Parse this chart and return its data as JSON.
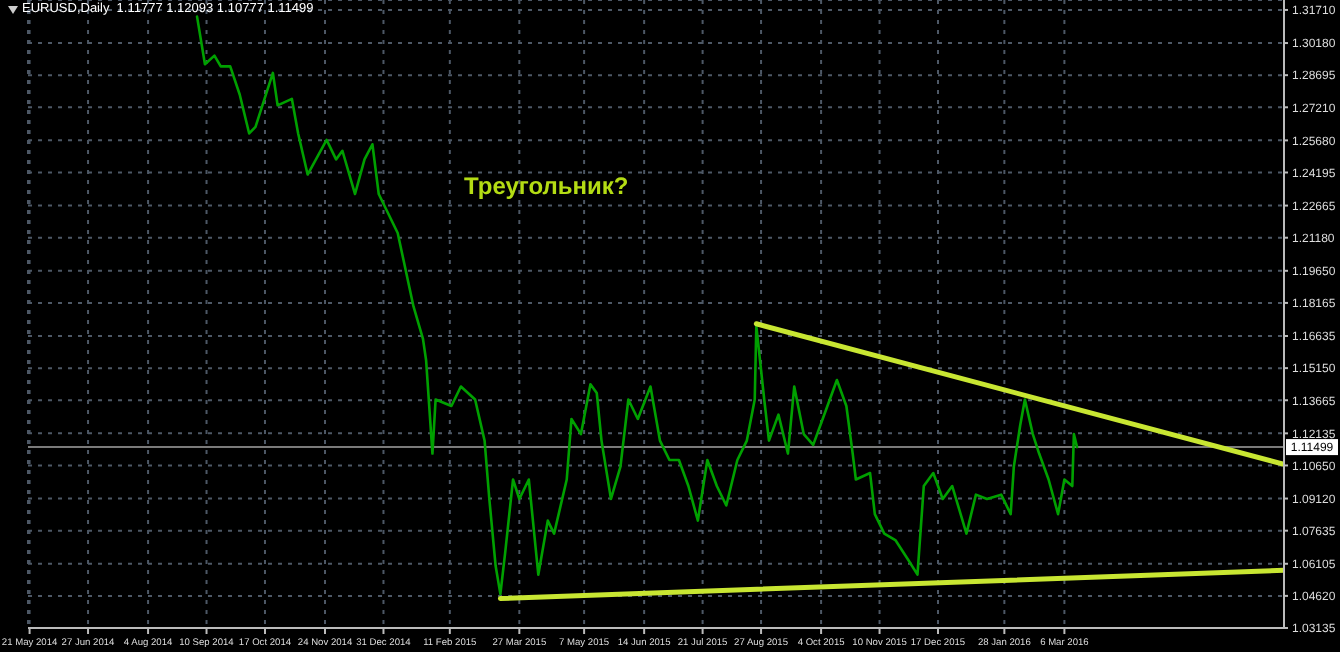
{
  "chart_data": {
    "type": "line",
    "title": "EURUSD,Daily  1.11777 1.12093 1.10777 1.11499",
    "annotations": [
      "Треугольник?"
    ],
    "x": [
      "2014-09-04",
      "2014-09-09",
      "2014-09-15",
      "2014-09-19",
      "2014-09-25",
      "2014-10-01",
      "2014-10-07",
      "2014-10-11",
      "2014-10-22",
      "2014-10-25",
      "2014-11-03",
      "2014-11-07",
      "2014-11-13",
      "2014-11-25",
      "2014-12-01",
      "2014-12-05",
      "2014-12-13",
      "2014-12-19",
      "2014-12-24",
      "2014-12-28",
      "2015-01-03",
      "2015-01-09",
      "2015-01-19",
      "2015-01-25",
      "2015-01-27",
      "2015-01-31",
      "2015-02-02",
      "2015-02-12",
      "2015-02-18",
      "2015-02-27",
      "2015-03-05",
      "2015-03-08",
      "2015-03-12",
      "2015-03-15",
      "2015-03-18",
      "2015-03-23",
      "2015-03-27",
      "2015-04-02",
      "2015-04-08",
      "2015-04-14",
      "2015-04-18",
      "2015-04-26",
      "2015-04-29",
      "2015-05-05",
      "2015-05-11",
      "2015-05-15",
      "2015-05-18",
      "2015-05-24",
      "2015-05-30",
      "2015-06-04",
      "2015-06-10",
      "2015-06-18",
      "2015-06-24",
      "2015-06-30",
      "2015-07-06",
      "2015-07-12",
      "2015-07-18",
      "2015-07-24",
      "2015-07-30",
      "2015-08-05",
      "2015-08-12",
      "2015-08-18",
      "2015-08-23",
      "2015-08-24",
      "2015-08-29",
      "2015-09-01",
      "2015-09-07",
      "2015-09-13",
      "2015-09-17",
      "2015-09-23",
      "2015-09-29",
      "2015-10-05",
      "2015-10-14",
      "2015-10-20",
      "2015-10-24",
      "2015-10-26",
      "2015-11-04",
      "2015-11-07",
      "2015-11-13",
      "2015-11-20",
      "2015-11-28",
      "2015-12-04",
      "2015-12-08",
      "2015-12-14",
      "2015-12-20",
      "2015-12-26",
      "2016-01-04",
      "2016-01-10",
      "2016-01-17",
      "2016-01-26",
      "2016-02-01",
      "2016-02-03",
      "2016-02-07",
      "2016-02-10",
      "2016-02-15",
      "2016-02-19",
      "2016-02-25",
      "2016-03-02",
      "2016-03-06",
      "2016-03-11",
      "2016-03-12",
      "2016-03-14"
    ],
    "series": [
      {
        "color": "#00a000",
        "values": [
          1.314,
          1.292,
          1.296,
          1.291,
          1.291,
          1.278,
          1.26,
          1.263,
          1.288,
          1.273,
          1.276,
          1.26,
          1.241,
          1.257,
          1.248,
          1.252,
          1.232,
          1.248,
          1.255,
          1.232,
          1.223,
          1.214,
          1.18,
          1.165,
          1.155,
          1.112,
          1.137,
          1.134,
          1.143,
          1.137,
          1.118,
          1.091,
          1.06,
          1.047,
          1.066,
          1.1,
          1.091,
          1.1,
          1.056,
          1.081,
          1.075,
          1.1,
          1.128,
          1.121,
          1.144,
          1.14,
          1.118,
          1.091,
          1.106,
          1.137,
          1.128,
          1.143,
          1.118,
          1.109,
          1.109,
          1.097,
          1.081,
          1.109,
          1.097,
          1.088,
          1.109,
          1.118,
          1.137,
          1.171,
          1.137,
          1.118,
          1.13,
          1.112,
          1.143,
          1.121,
          1.116,
          1.128,
          1.146,
          1.134,
          1.112,
          1.1,
          1.103,
          1.084,
          1.075,
          1.072,
          1.063,
          1.056,
          1.097,
          1.103,
          1.091,
          1.097,
          1.075,
          1.093,
          1.091,
          1.093,
          1.084,
          1.106,
          1.125,
          1.137,
          1.121,
          1.112,
          1.1,
          1.084,
          1.1,
          1.097,
          1.121,
          1.115
        ]
      },
      {
        "color": "#c8e632",
        "x": [
          "2015-08-24",
          "2016-07-23"
        ],
        "values": [
          1.172,
          1.107
        ]
      },
      {
        "color": "#c8e632",
        "x": [
          "2015-03-15",
          "2016-07-23"
        ],
        "values": [
          1.045,
          1.058
        ]
      }
    ],
    "xlim": [
      "2014-05-20",
      "2016-07-23"
    ],
    "xticks": [
      {
        "value": "2014-05-21",
        "label": "21 May 2014"
      },
      {
        "value": "2014-06-27",
        "label": "27 Jun 2014"
      },
      {
        "value": "2014-08-04",
        "label": "4 Aug 2014"
      },
      {
        "value": "2014-09-10",
        "label": "10 Sep 2014"
      },
      {
        "value": "2014-10-17",
        "label": "17 Oct 2014"
      },
      {
        "value": "2014-11-24",
        "label": "24 Nov 2014"
      },
      {
        "value": "2014-12-31",
        "label": "31 Dec 2014"
      },
      {
        "value": "2015-02-11",
        "label": "11 Feb 2015"
      },
      {
        "value": "2015-03-27",
        "label": "27 Mar 2015"
      },
      {
        "value": "2015-05-07",
        "label": "7 May 2015"
      },
      {
        "value": "2015-06-14",
        "label": "14 Jun 2015"
      },
      {
        "value": "2015-07-21",
        "label": "21 Jul 2015"
      },
      {
        "value": "2015-08-27",
        "label": "27 Aug 2015"
      },
      {
        "value": "2015-10-04",
        "label": "4 Oct 2015"
      },
      {
        "value": "2015-11-10",
        "label": "10 Nov 2015"
      },
      {
        "value": "2015-12-17",
        "label": "17 Dec 2015"
      },
      {
        "value": "2016-01-28",
        "label": "28 Jan 2016"
      },
      {
        "value": "2016-03-06",
        "label": "6 Mar 2016"
      }
    ],
    "ylim": [
      1.03135,
      1.3217
    ],
    "yticks": [
      {
        "value": 1.3171,
        "label": "1.31710"
      },
      {
        "value": 1.3018,
        "label": "1.30180"
      },
      {
        "value": 1.28695,
        "label": "1.28695"
      },
      {
        "value": 1.2721,
        "label": "1.27210"
      },
      {
        "value": 1.2568,
        "label": "1.25680"
      },
      {
        "value": 1.24195,
        "label": "1.24195"
      },
      {
        "value": 1.22665,
        "label": "1.22665"
      },
      {
        "value": 1.2118,
        "label": "1.21180"
      },
      {
        "value": 1.1965,
        "label": "1.19650"
      },
      {
        "value": 1.18165,
        "label": "1.18165"
      },
      {
        "value": 1.16635,
        "label": "1.16635"
      },
      {
        "value": 1.1515,
        "label": "1.15150"
      },
      {
        "value": 1.13665,
        "label": "1.13665"
      },
      {
        "value": 1.12135,
        "label": "1.12135"
      },
      {
        "value": 1.1065,
        "label": "1.10650"
      },
      {
        "value": 1.0912,
        "label": "1.09120"
      },
      {
        "value": 1.07635,
        "label": "1.07635"
      },
      {
        "value": 1.06105,
        "label": "1.06105"
      },
      {
        "value": 1.0462,
        "label": "1.04620"
      },
      {
        "value": 1.03135,
        "label": "1.03135"
      }
    ],
    "ref_lines": [
      {
        "axis": "y",
        "value": 1.11499,
        "label": "1.11499",
        "color": "#7a7a7a"
      }
    ],
    "grid": true,
    "legend": false,
    "marker": "none",
    "line_style": "solid"
  }
}
